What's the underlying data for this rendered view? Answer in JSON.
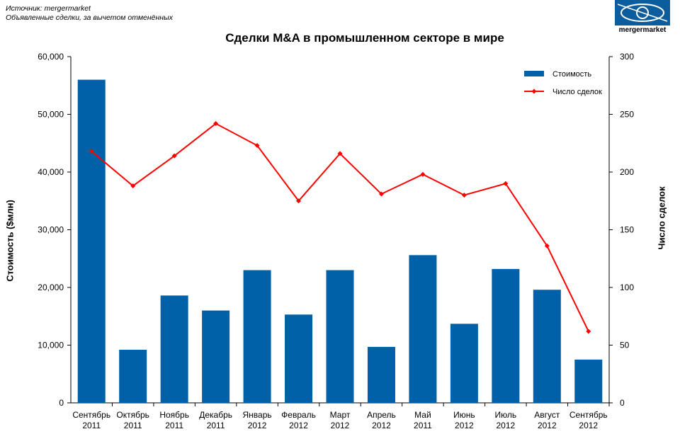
{
  "header": {
    "source_line1": "Источник: mergermarket",
    "source_line2": "Объявленные сделки, за вычетом отменённых",
    "logo_text": "mergermarket"
  },
  "chart_data": {
    "type": "bar",
    "title": "Сделки M&A в промышленном секторе в мире",
    "ylabel": "Стоимость ($млн)",
    "y2label": "Число сделок",
    "categories": [
      [
        "Сентябрь",
        "2011"
      ],
      [
        "Октябрь",
        "2011"
      ],
      [
        "Ноябрь",
        "2011"
      ],
      [
        "Декабрь",
        "2011"
      ],
      [
        "Январь",
        "2012"
      ],
      [
        "Февраль",
        "2012"
      ],
      [
        "Март",
        "2012"
      ],
      [
        "Апрель",
        "2012"
      ],
      [
        "Май",
        "2011"
      ],
      [
        "Июнь",
        "2012"
      ],
      [
        "Июль",
        "2012"
      ],
      [
        "Август",
        "2012"
      ],
      [
        "Сентябрь",
        "2012"
      ]
    ],
    "ylim": [
      0,
      60000
    ],
    "y_ticks": [
      "0",
      "10,000",
      "20,000",
      "30,000",
      "40,000",
      "50,000",
      "60,000"
    ],
    "y2lim": [
      0,
      300
    ],
    "y2_ticks": [
      "0",
      "50",
      "100",
      "150",
      "200",
      "250",
      "300"
    ],
    "legend_position": "top-right",
    "series": [
      {
        "name": "Стоимость",
        "type": "bar",
        "axis": "left",
        "color": "#0060a8",
        "values": [
          56000,
          9200,
          18600,
          16000,
          23000,
          15300,
          23000,
          9700,
          25600,
          13700,
          23200,
          19600,
          7500
        ]
      },
      {
        "name": "Число сделок",
        "type": "line",
        "axis": "right",
        "color": "#ff0000",
        "values": [
          218,
          188,
          214,
          242,
          223,
          175,
          216,
          181,
          198,
          180,
          190,
          136,
          62
        ]
      }
    ]
  }
}
